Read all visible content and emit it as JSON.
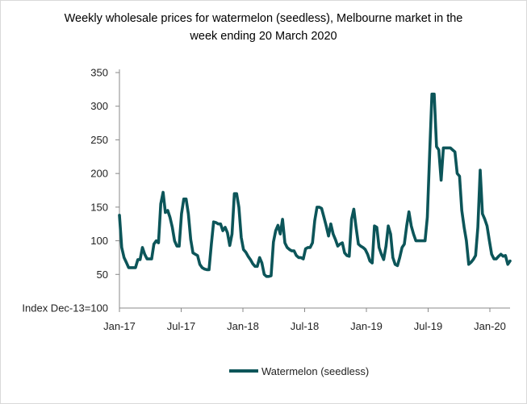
{
  "chart_data": {
    "type": "line",
    "title": "Weekly wholesale prices for watermelon (seedless), Melbourne market in the week ending 20 March 2020",
    "ylabel": "Index Dec-13=100",
    "xlabel": "",
    "ylim": [
      0,
      350
    ],
    "yticks": [
      50,
      100,
      150,
      200,
      250,
      300,
      350
    ],
    "xtick_labels": [
      "Jan-17",
      "Jul-17",
      "Jan-18",
      "Jul-18",
      "Jan-19",
      "Jul-19",
      "Jan-20"
    ],
    "grid": false,
    "legend_position": "bottom",
    "color": "#0c5559",
    "series": [
      {
        "name": "Watermelon (seedless)",
        "values": [
          138,
          90,
          75,
          68,
          60,
          60,
          60,
          60,
          72,
          72,
          90,
          80,
          73,
          73,
          73,
          95,
          100,
          97,
          155,
          172,
          142,
          145,
          135,
          120,
          100,
          92,
          92,
          140,
          162,
          162,
          140,
          102,
          82,
          80,
          78,
          65,
          60,
          58,
          57,
          57,
          95,
          128,
          127,
          125,
          125,
          115,
          120,
          112,
          93,
          110,
          170,
          170,
          150,
          105,
          87,
          83,
          77,
          72,
          66,
          62,
          62,
          75,
          67,
          50,
          47,
          47,
          48,
          98,
          115,
          123,
          110,
          132,
          97,
          90,
          87,
          85,
          85,
          78,
          75,
          75,
          73,
          88,
          90,
          90,
          97,
          130,
          150,
          150,
          148,
          135,
          122,
          107,
          125,
          110,
          102,
          92,
          95,
          97,
          82,
          78,
          77,
          132,
          147,
          120,
          95,
          92,
          90,
          87,
          80,
          70,
          67,
          122,
          120,
          90,
          80,
          72,
          92,
          122,
          110,
          75,
          65,
          63,
          75,
          90,
          95,
          122,
          143,
          122,
          110,
          100,
          100,
          100,
          100,
          100,
          135,
          230,
          318,
          318,
          240,
          235,
          190,
          238,
          238,
          238,
          238,
          235,
          232,
          200,
          196,
          145,
          120,
          100,
          65,
          68,
          72,
          78,
          120,
          205,
          140,
          132,
          122,
          100,
          80,
          73,
          73,
          77,
          80,
          77,
          78,
          65,
          70
        ]
      }
    ]
  }
}
